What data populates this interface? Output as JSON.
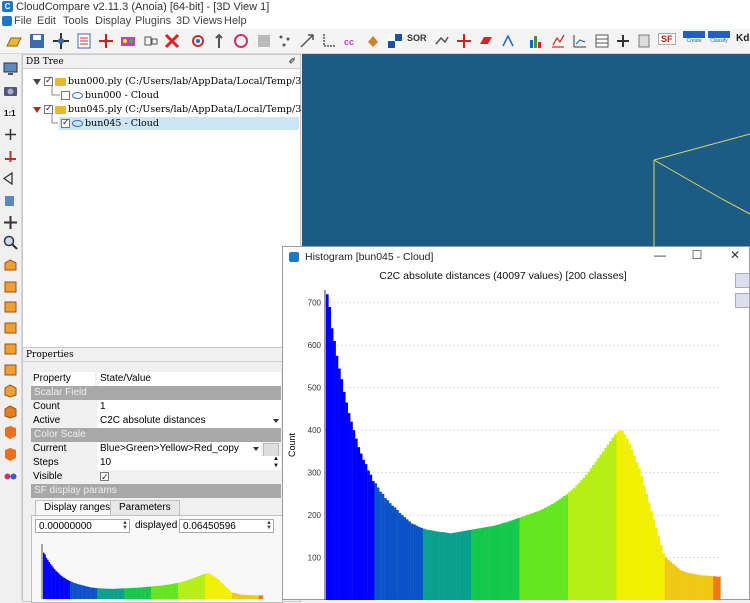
{
  "window": {
    "title": "CloudCompare v2.11.3 (Anoia) [64-bit] - [3D View 1]"
  },
  "menu": [
    "File",
    "Edit",
    "Tools",
    "Display",
    "Plugins",
    "3D Views",
    "Help"
  ],
  "toolbar": {
    "sor_label": "SOR",
    "sf_label": "SF",
    "kd_label": "Kd",
    "canupo_create": "Create",
    "canupo_classify": "Classify"
  },
  "db_tree": {
    "header": "DB Tree",
    "items": [
      {
        "label": "bun000.ply (C:/Users/lab/AppData/Local/Temp/3⋯",
        "level": 0,
        "checked": true
      },
      {
        "label": "bun000 - Cloud",
        "level": 1,
        "checked": false
      },
      {
        "label": "bun045.ply (C:/Users/lab/AppData/Local/Temp/3⋯",
        "level": 0,
        "checked": true
      },
      {
        "label": "bun045 - Cloud",
        "level": 1,
        "checked": true,
        "selected": true
      }
    ]
  },
  "properties": {
    "header": "Properties",
    "col_property": "Property",
    "col_value": "State/Value",
    "section_scalar": "Scalar Field",
    "count_label": "Count",
    "count_value": "1",
    "active_label": "Active",
    "active_value": "C2C absolute distances",
    "section_color": "Color Scale",
    "current_label": "Current",
    "current_value": "Blue>Green>Yellow>Red_copy",
    "steps_label": "Steps",
    "steps_value": "10",
    "visible_label": "Visible",
    "section_sf": "SF display params",
    "tab_ranges": "Display ranges",
    "tab_params": "Parameters",
    "range_min": "0.00000000",
    "displayed_label": "displayed",
    "range_max": "0.06450596"
  },
  "histogram_window": {
    "title": "Histogram [bun045 - Cloud]",
    "btn_min": "—",
    "btn_max": "☐",
    "btn_close": "✕"
  },
  "chart_data": {
    "type": "bar",
    "title": "C2C absolute distances (40097 values)  [200 classes]",
    "ylabel": "Count",
    "xlabel": "",
    "ylim": [
      0,
      730
    ],
    "yticks": [
      100,
      200,
      300,
      400,
      500,
      600,
      700
    ],
    "classes": 200,
    "visible_classes": 163,
    "grid": true,
    "values": [
      720,
      690,
      640,
      610,
      575,
      545,
      520,
      490,
      465,
      440,
      420,
      400,
      380,
      360,
      345,
      330,
      320,
      305,
      295,
      280,
      275,
      265,
      255,
      250,
      240,
      235,
      228,
      222,
      218,
      212,
      205,
      200,
      195,
      190,
      185,
      180,
      178,
      175,
      172,
      170,
      168,
      166,
      165,
      164,
      163,
      162,
      161,
      160,
      160,
      159,
      158,
      157,
      158,
      159,
      160,
      161,
      162,
      163,
      164,
      165,
      166,
      167,
      168,
      169,
      170,
      171,
      172,
      173,
      174,
      175,
      177,
      178,
      180,
      182,
      183,
      185,
      187,
      189,
      191,
      193,
      195,
      197,
      199,
      201,
      203,
      205,
      207,
      209,
      211,
      214,
      217,
      220,
      223,
      226,
      229,
      233,
      237,
      241,
      245,
      249,
      254,
      259,
      264,
      270,
      276,
      282,
      288,
      295,
      302,
      310,
      318,
      326,
      334,
      342,
      350,
      358,
      366,
      374,
      382,
      390,
      396,
      400,
      398,
      390,
      380,
      368,
      355,
      340,
      325,
      310,
      292,
      270,
      250,
      230,
      210,
      190,
      170,
      150,
      130,
      110,
      100,
      95,
      90,
      85,
      80,
      75,
      70,
      68,
      66,
      64,
      63,
      62,
      61,
      60,
      59,
      58,
      58,
      57,
      57,
      56,
      56,
      55,
      55
    ],
    "color_steps": [
      "#0000ff",
      "#0a52c8",
      "#08a08c",
      "#14c84a",
      "#64e61e",
      "#b4f014",
      "#f0f000",
      "#f0c814",
      "#f07814",
      "#f03200"
    ],
    "colors_note_step_width_classes": 20
  }
}
